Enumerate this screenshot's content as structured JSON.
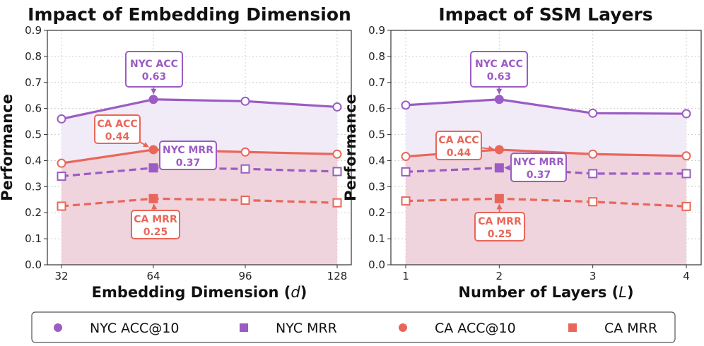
{
  "colors": {
    "nyc": "#9b5cc4",
    "ca": "#e8675a",
    "nyc_fill": "#f1ebf8",
    "ca_fill": "#efd3dd",
    "grid": "#cfcfcf"
  },
  "chart_data": [
    {
      "type": "line",
      "title": "Impact of Embedding Dimension",
      "xlabel": "Embedding Dimension (",
      "xlabel_var": "d",
      "xlabel_end": ")",
      "ylabel": "Performance",
      "ylim": [
        0.0,
        0.9
      ],
      "yticks": [
        "0.0",
        "0.1",
        "0.2",
        "0.3",
        "0.4",
        "0.5",
        "0.6",
        "0.7",
        "0.8",
        "0.9"
      ],
      "categories": [
        "32",
        "64",
        "96",
        "128"
      ],
      "grid": true,
      "series": [
        {
          "name": "NYC ACC@10",
          "key": "nyc",
          "style": "solid",
          "marker": "circle",
          "values": [
            0.56,
            0.635,
            0.628,
            0.606
          ]
        },
        {
          "name": "NYC MRR",
          "key": "nyc",
          "style": "dashed",
          "marker": "square",
          "values": [
            0.34,
            0.372,
            0.368,
            0.358
          ]
        },
        {
          "name": "CA ACC@10",
          "key": "ca",
          "style": "solid",
          "marker": "circle",
          "values": [
            0.39,
            0.442,
            0.433,
            0.425
          ]
        },
        {
          "name": "CA MRR",
          "key": "ca",
          "style": "dashed",
          "marker": "square",
          "values": [
            0.225,
            0.254,
            0.248,
            0.238
          ]
        }
      ],
      "annotations": [
        {
          "label": "NYC ACC",
          "value": "0.63",
          "key": "nyc",
          "series": 0,
          "point": 1
        },
        {
          "label": "NYC MRR",
          "value": "0.37",
          "key": "nyc",
          "series": 1,
          "point": 1
        },
        {
          "label": "CA ACC",
          "value": "0.44",
          "key": "ca",
          "series": 2,
          "point": 1
        },
        {
          "label": "CA MRR",
          "value": "0.25",
          "key": "ca",
          "series": 3,
          "point": 1
        }
      ]
    },
    {
      "type": "line",
      "title": "Impact of SSM Layers",
      "xlabel": "Number of Layers (",
      "xlabel_var": "L",
      "xlabel_end": ")",
      "ylabel": "Performance",
      "ylim": [
        0.0,
        0.9
      ],
      "yticks": [
        "0.0",
        "0.1",
        "0.2",
        "0.3",
        "0.4",
        "0.5",
        "0.6",
        "0.7",
        "0.8",
        "0.9"
      ],
      "categories": [
        "1",
        "2",
        "3",
        "4"
      ],
      "grid": true,
      "series": [
        {
          "name": "NYC ACC@10",
          "key": "nyc",
          "style": "solid",
          "marker": "circle",
          "values": [
            0.613,
            0.635,
            0.582,
            0.58
          ]
        },
        {
          "name": "NYC MRR",
          "key": "nyc",
          "style": "dashed",
          "marker": "square",
          "values": [
            0.357,
            0.372,
            0.35,
            0.35
          ]
        },
        {
          "name": "CA ACC@10",
          "key": "ca",
          "style": "solid",
          "marker": "circle",
          "values": [
            0.416,
            0.442,
            0.425,
            0.418
          ]
        },
        {
          "name": "CA MRR",
          "key": "ca",
          "style": "dashed",
          "marker": "square",
          "values": [
            0.245,
            0.254,
            0.242,
            0.224
          ]
        }
      ],
      "annotations": [
        {
          "label": "NYC ACC",
          "value": "0.63",
          "key": "nyc",
          "series": 0,
          "point": 1
        },
        {
          "label": "NYC MRR",
          "value": "0.37",
          "key": "nyc",
          "series": 1,
          "point": 1
        },
        {
          "label": "CA ACC",
          "value": "0.44",
          "key": "ca",
          "series": 2,
          "point": 1
        },
        {
          "label": "CA MRR",
          "value": "0.25",
          "key": "ca",
          "series": 3,
          "point": 1
        }
      ]
    }
  ],
  "legend": {
    "placement": "bottom",
    "items": [
      {
        "name": "NYC ACC@10",
        "key": "nyc",
        "marker": "circle"
      },
      {
        "name": "NYC MRR",
        "key": "nyc",
        "marker": "square"
      },
      {
        "name": "CA ACC@10",
        "key": "ca",
        "marker": "circle"
      },
      {
        "name": "CA MRR",
        "key": "ca",
        "marker": "square"
      }
    ]
  }
}
